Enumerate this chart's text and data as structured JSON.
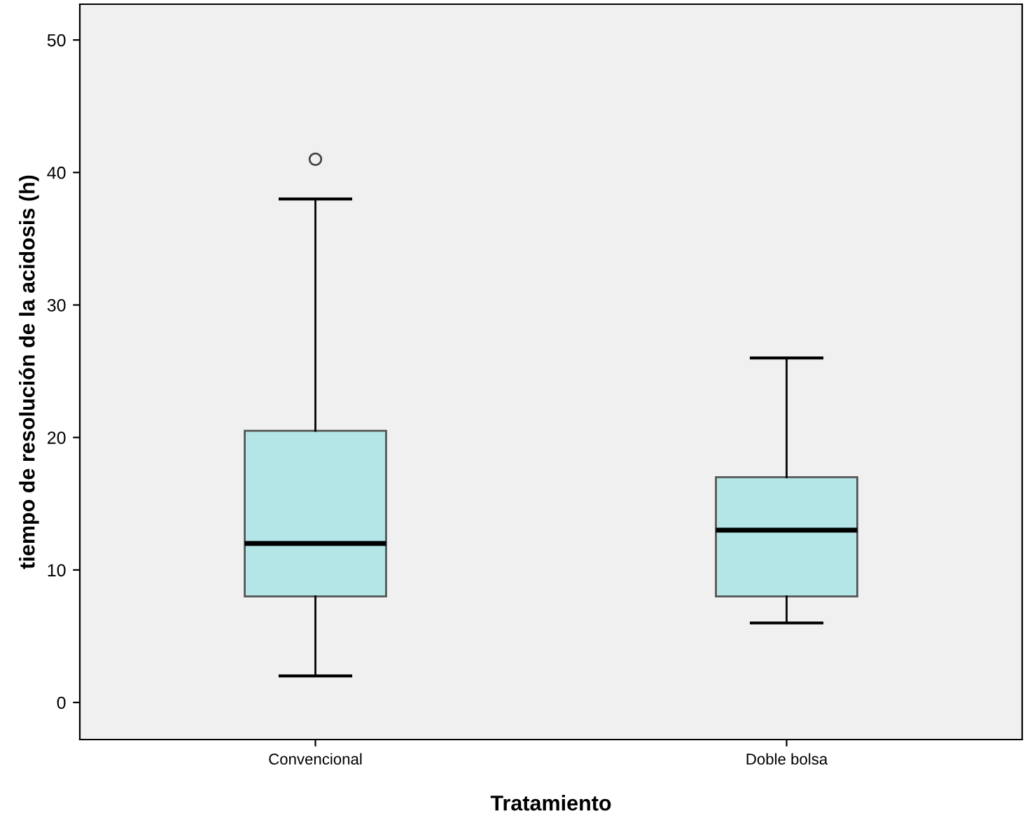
{
  "chart_data": {
    "type": "box",
    "xlabel": "Tratamiento",
    "ylabel": "tiempo de resolución de la acidosis (h)",
    "categories": [
      "Convencional",
      "Doble bolsa"
    ],
    "boxes": [
      {
        "low": 2,
        "q1": 8,
        "median": 12,
        "q3": 20.5,
        "high": 38,
        "outliers": [
          41
        ]
      },
      {
        "low": 6,
        "q1": 8,
        "median": 13,
        "q3": 17,
        "high": 26
      }
    ],
    "color": "#b5e6e7",
    "ylim": [
      -2.8,
      52.7
    ],
    "yticks": [
      0,
      10,
      20,
      30,
      40,
      50
    ],
    "grid": false
  }
}
